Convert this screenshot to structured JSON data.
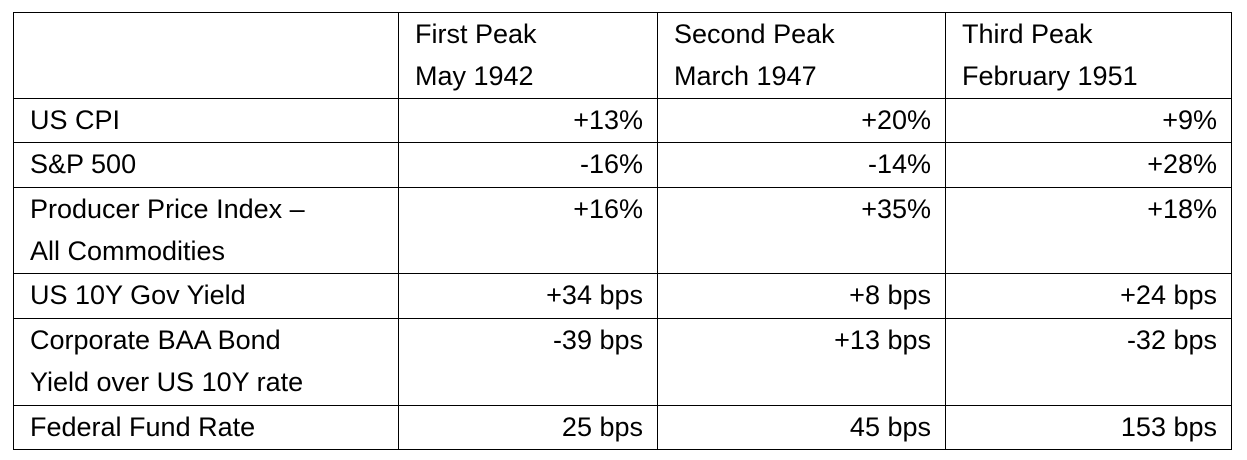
{
  "header": {
    "empty": "",
    "columns": [
      {
        "line1": "First Peak",
        "line2": "May 1942"
      },
      {
        "line1": "Second Peak",
        "line2": "March 1947"
      },
      {
        "line1": "Third Peak",
        "line2": "February 1951"
      }
    ]
  },
  "rows": [
    {
      "label1": "US CPI",
      "label2": "",
      "values": [
        "+13%",
        "+20%",
        "+9%"
      ]
    },
    {
      "label1": "S&P 500",
      "label2": "",
      "values": [
        "-16%",
        "-14%",
        "+28%"
      ]
    },
    {
      "label1": "Producer Price Index –",
      "label2": "All Commodities",
      "values": [
        "+16%",
        "+35%",
        "+18%"
      ]
    },
    {
      "label1": "US 10Y Gov Yield",
      "label2": "",
      "values": [
        "+34 bps",
        "+8 bps",
        "+24 bps"
      ]
    },
    {
      "label1": "Corporate BAA Bond",
      "label2": "Yield over US 10Y rate",
      "values": [
        "-39 bps",
        "+13 bps",
        "-32 bps"
      ]
    },
    {
      "label1": "Federal Fund Rate",
      "label2": "",
      "values": [
        "25 bps",
        "45 bps",
        "153 bps"
      ]
    }
  ]
}
